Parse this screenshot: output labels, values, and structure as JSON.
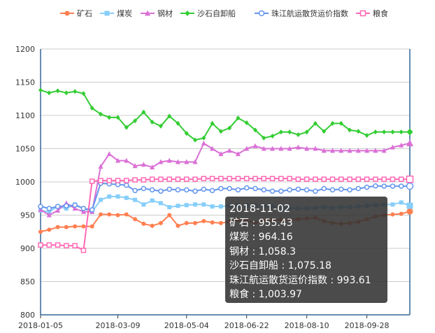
{
  "chart_data": {
    "type": "line",
    "x": [
      "2018-01-05",
      "2018-01-12",
      "2018-01-19",
      "2018-01-26",
      "2018-02-02",
      "2018-02-09",
      "2018-02-14",
      "2018-02-23",
      "2018-03-02",
      "2018-03-09",
      "2018-03-16",
      "2018-03-23",
      "2018-03-30",
      "2018-04-04",
      "2018-04-13",
      "2018-04-20",
      "2018-04-27",
      "2018-05-04",
      "2018-05-11",
      "2018-05-18",
      "2018-05-25",
      "2018-06-01",
      "2018-06-08",
      "2018-06-15",
      "2018-06-22",
      "2018-06-29",
      "2018-07-06",
      "2018-07-13",
      "2018-07-20",
      "2018-07-27",
      "2018-08-03",
      "2018-08-10",
      "2018-08-17",
      "2018-08-24",
      "2018-08-31",
      "2018-09-07",
      "2018-09-14",
      "2018-09-21",
      "2018-09-28",
      "2018-10-05",
      "2018-10-12",
      "2018-10-19",
      "2018-10-26",
      "2018-11-02"
    ],
    "x_tick_labels": [
      "2018-01-05",
      "2018-03-09",
      "2018-05-04",
      "2018-06-22",
      "2018-08-10",
      "2018-09-28"
    ],
    "ylim": [
      800,
      1200
    ],
    "y_ticks": [
      800,
      850,
      900,
      950,
      1000,
      1050,
      1100,
      1150,
      1200
    ],
    "grid": true,
    "legend_position": "top",
    "series": [
      {
        "name": "矿石",
        "color": "#ff7f50",
        "marker": "circle",
        "values": [
          925,
          928,
          932,
          932,
          933,
          933,
          933,
          951,
          951,
          950,
          951,
          944,
          937,
          934,
          938,
          950,
          934,
          938,
          938,
          941,
          939,
          938,
          940,
          943,
          941,
          939,
          941,
          943,
          943,
          943,
          944,
          945,
          946,
          941,
          938,
          937,
          938,
          940,
          944,
          948,
          950,
          951,
          952,
          955.43
        ]
      },
      {
        "name": "煤炭",
        "color": "#87cefa",
        "marker": "square",
        "values": [
          957,
          955,
          963,
          960,
          966,
          960,
          955,
          973,
          978,
          978,
          976,
          973,
          966,
          972,
          968,
          962,
          964,
          965,
          966,
          966,
          963,
          963,
          964,
          965,
          964,
          965,
          963,
          963,
          960,
          961,
          960,
          960,
          961,
          962,
          961,
          962,
          962,
          963,
          964,
          965,
          966,
          966,
          969,
          964.16
        ]
      },
      {
        "name": "钢材",
        "color": "#da70d6",
        "marker": "triangle",
        "values": [
          958,
          950,
          957,
          968,
          960,
          955,
          955,
          1023,
          1042,
          1032,
          1032,
          1024,
          1026,
          1022,
          1030,
          1032,
          1030,
          1030,
          1030,
          1058,
          1050,
          1042,
          1047,
          1042,
          1050,
          1054,
          1050,
          1050,
          1050,
          1050,
          1052,
          1050,
          1050,
          1047,
          1047,
          1047,
          1047,
          1047,
          1047,
          1047,
          1047,
          1052,
          1055,
          1058.3
        ]
      },
      {
        "name": "沙石自卸船",
        "color": "#32cd32",
        "marker": "diamond",
        "values": [
          1138,
          1134,
          1137,
          1134,
          1136,
          1133,
          1111,
          1102,
          1097,
          1097,
          1082,
          1092,
          1105,
          1090,
          1084,
          1099,
          1088,
          1073,
          1063,
          1066,
          1088,
          1076,
          1081,
          1096,
          1089,
          1078,
          1066,
          1069,
          1075,
          1075,
          1071,
          1075,
          1088,
          1076,
          1088,
          1088,
          1078,
          1076,
          1070,
          1075.18,
          1075.18,
          1075.18,
          1075.18,
          1075.18
        ]
      },
      {
        "name": "珠江航运散货运价指数",
        "color": "#6495ed",
        "marker": "empty-circle",
        "values": [
          963,
          960,
          963,
          964,
          965,
          960,
          958,
          998,
          997,
          996,
          995,
          987,
          990,
          988,
          986,
          989,
          988,
          988,
          986,
          989,
          987,
          990,
          990,
          988,
          991,
          990,
          988,
          986,
          986,
          988,
          989,
          988,
          986,
          990,
          988,
          989,
          988,
          990,
          992,
          994,
          993.61,
          993.61,
          993.61,
          993.61
        ]
      },
      {
        "name": "粮食",
        "color": "#ff69b4",
        "marker": "empty-square",
        "values": [
          905,
          905,
          905,
          904,
          904,
          897,
          1001,
          1002,
          1002,
          1002,
          1002,
          1003,
          1003,
          1004,
          1004,
          1004,
          1004,
          1004,
          1004,
          1005,
          1005,
          1005,
          1005,
          1005,
          1005,
          1005,
          1005,
          1005,
          1005,
          1005,
          1004,
          1004,
          1004,
          1004,
          1004,
          1004,
          1004,
          1004,
          1004,
          1004,
          1003.97,
          1003.97,
          1003.97,
          1003.97
        ]
      }
    ]
  },
  "tooltip": {
    "date": "2018-11-02",
    "rows": [
      {
        "label": "矿石",
        "value": "955.43"
      },
      {
        "label": "煤炭",
        "value": "964.16"
      },
      {
        "label": "钢材",
        "value": "1,058.3"
      },
      {
        "label": "沙石自卸船",
        "value": "1,075.18"
      },
      {
        "label": "珠江航运散货运价指数",
        "value": "993.61"
      },
      {
        "label": "粮食",
        "value": "1,003.97"
      }
    ]
  }
}
